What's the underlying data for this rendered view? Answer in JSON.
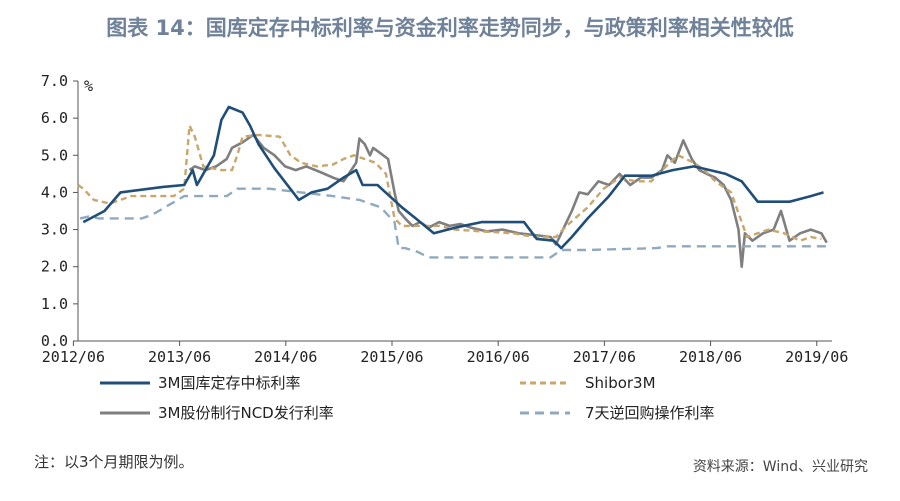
{
  "title": "图表 14：国库定存中标利率与资金利率走势同步，与政策利率相关性较低",
  "note": "注：以3个月期限为例。",
  "source": "资料来源：Wind、兴业研究",
  "colors": {
    "deposit": "#1f4e79",
    "shibor": "#c9a66b",
    "ncd": "#7f7f7f",
    "reverse_repo": "#8faabf"
  },
  "chart_data": {
    "type": "line",
    "title": "图表 14：国库定存中标利率与资金利率走势同步，与政策利率相关性较低",
    "ylabel": "%",
    "xlabel": "",
    "ylim": [
      0.0,
      7.0
    ],
    "y_ticks": [
      "0.0",
      "1.0",
      "2.0",
      "3.0",
      "4.0",
      "5.0",
      "6.0",
      "7.0"
    ],
    "x_ticks": [
      "2012/06",
      "2013/06",
      "2014/06",
      "2015/06",
      "2016/06",
      "2017/06",
      "2018/06",
      "2019/06"
    ],
    "xlim": [
      2012.5,
      2019.6
    ],
    "grid": false,
    "legend_position": "bottom",
    "series": [
      {
        "name": "3M国库定存中标利率",
        "style": "solid-thick",
        "points": [
          [
            2012.55,
            3.2
          ],
          [
            2012.75,
            3.5
          ],
          [
            2012.9,
            4.0
          ],
          [
            2013.3,
            4.15
          ],
          [
            2013.5,
            4.2
          ],
          [
            2013.58,
            4.6
          ],
          [
            2013.62,
            4.2
          ],
          [
            2013.78,
            5.0
          ],
          [
            2013.85,
            5.95
          ],
          [
            2013.92,
            6.3
          ],
          [
            2014.05,
            6.15
          ],
          [
            2014.12,
            5.8
          ],
          [
            2014.2,
            5.3
          ],
          [
            2014.35,
            4.65
          ],
          [
            2014.58,
            3.8
          ],
          [
            2014.7,
            4.0
          ],
          [
            2014.85,
            4.1
          ],
          [
            2015.0,
            4.4
          ],
          [
            2015.12,
            4.6
          ],
          [
            2015.18,
            4.2
          ],
          [
            2015.32,
            4.2
          ],
          [
            2015.55,
            3.6
          ],
          [
            2015.68,
            3.3
          ],
          [
            2015.85,
            2.9
          ],
          [
            2016.05,
            3.05
          ],
          [
            2016.3,
            3.2
          ],
          [
            2016.7,
            3.2
          ],
          [
            2016.82,
            2.75
          ],
          [
            2016.98,
            2.7
          ],
          [
            2017.05,
            2.5
          ],
          [
            2017.15,
            2.8
          ],
          [
            2017.3,
            3.3
          ],
          [
            2017.5,
            3.9
          ],
          [
            2017.65,
            4.45
          ],
          [
            2017.9,
            4.45
          ],
          [
            2018.1,
            4.6
          ],
          [
            2018.3,
            4.7
          ],
          [
            2018.45,
            4.6
          ],
          [
            2018.6,
            4.5
          ],
          [
            2018.75,
            4.3
          ],
          [
            2018.9,
            3.75
          ],
          [
            2019.0,
            3.75
          ],
          [
            2019.2,
            3.75
          ],
          [
            2019.4,
            3.9
          ],
          [
            2019.52,
            4.0
          ]
        ]
      },
      {
        "name": "Shibor3M",
        "style": "dashed",
        "points": [
          [
            2012.5,
            4.2
          ],
          [
            2012.55,
            4.1
          ],
          [
            2012.65,
            3.8
          ],
          [
            2012.8,
            3.7
          ],
          [
            2013.0,
            3.9
          ],
          [
            2013.4,
            3.9
          ],
          [
            2013.5,
            4.1
          ],
          [
            2013.55,
            5.8
          ],
          [
            2013.6,
            5.5
          ],
          [
            2013.68,
            4.7
          ],
          [
            2013.85,
            4.6
          ],
          [
            2013.95,
            4.6
          ],
          [
            2014.0,
            5.0
          ],
          [
            2014.05,
            5.5
          ],
          [
            2014.2,
            5.55
          ],
          [
            2014.4,
            5.5
          ],
          [
            2014.5,
            5.0
          ],
          [
            2014.6,
            4.8
          ],
          [
            2014.75,
            4.7
          ],
          [
            2014.9,
            4.75
          ],
          [
            2015.0,
            4.9
          ],
          [
            2015.1,
            5.0
          ],
          [
            2015.2,
            4.9
          ],
          [
            2015.3,
            4.8
          ],
          [
            2015.4,
            4.5
          ],
          [
            2015.48,
            3.3
          ],
          [
            2015.55,
            3.1
          ],
          [
            2015.7,
            3.1
          ],
          [
            2015.9,
            3.1
          ],
          [
            2016.05,
            3.0
          ],
          [
            2016.3,
            2.95
          ],
          [
            2016.6,
            2.9
          ],
          [
            2016.8,
            2.8
          ],
          [
            2017.0,
            2.8
          ],
          [
            2017.1,
            3.1
          ],
          [
            2017.3,
            3.6
          ],
          [
            2017.45,
            4.1
          ],
          [
            2017.6,
            4.4
          ],
          [
            2017.75,
            4.3
          ],
          [
            2017.9,
            4.3
          ],
          [
            2018.0,
            4.6
          ],
          [
            2018.15,
            5.0
          ],
          [
            2018.3,
            4.8
          ],
          [
            2018.4,
            4.6
          ],
          [
            2018.5,
            4.3
          ],
          [
            2018.65,
            4.0
          ],
          [
            2018.75,
            3.2
          ],
          [
            2018.8,
            2.8
          ],
          [
            2018.9,
            2.9
          ],
          [
            2019.0,
            3.0
          ],
          [
            2019.15,
            2.9
          ],
          [
            2019.3,
            2.7
          ],
          [
            2019.4,
            2.8
          ],
          [
            2019.5,
            2.75
          ]
        ]
      },
      {
        "name": "3M股份制行NCD发行利率",
        "style": "solid-jagged",
        "points": [
          [
            2013.55,
            4.6
          ],
          [
            2013.6,
            4.7
          ],
          [
            2013.7,
            4.6
          ],
          [
            2013.8,
            4.7
          ],
          [
            2013.9,
            4.9
          ],
          [
            2013.95,
            5.2
          ],
          [
            2014.05,
            5.35
          ],
          [
            2014.15,
            5.55
          ],
          [
            2014.25,
            5.2
          ],
          [
            2014.35,
            5.0
          ],
          [
            2014.45,
            4.7
          ],
          [
            2014.55,
            4.6
          ],
          [
            2014.65,
            4.7
          ],
          [
            2014.78,
            4.55
          ],
          [
            2014.9,
            4.4
          ],
          [
            2015.0,
            4.3
          ],
          [
            2015.05,
            4.5
          ],
          [
            2015.12,
            4.8
          ],
          [
            2015.15,
            5.45
          ],
          [
            2015.2,
            5.3
          ],
          [
            2015.25,
            5.0
          ],
          [
            2015.28,
            5.2
          ],
          [
            2015.35,
            5.05
          ],
          [
            2015.42,
            4.9
          ],
          [
            2015.48,
            4.0
          ],
          [
            2015.52,
            3.5
          ],
          [
            2015.58,
            3.3
          ],
          [
            2015.65,
            3.1
          ],
          [
            2015.72,
            3.2
          ],
          [
            2015.8,
            3.05
          ],
          [
            2015.9,
            3.2
          ],
          [
            2016.0,
            3.1
          ],
          [
            2016.1,
            3.15
          ],
          [
            2016.2,
            3.05
          ],
          [
            2016.35,
            2.95
          ],
          [
            2016.5,
            3.0
          ],
          [
            2016.65,
            2.9
          ],
          [
            2016.8,
            2.85
          ],
          [
            2016.95,
            2.8
          ],
          [
            2017.0,
            2.6
          ],
          [
            2017.05,
            2.9
          ],
          [
            2017.15,
            3.5
          ],
          [
            2017.22,
            4.0
          ],
          [
            2017.3,
            3.95
          ],
          [
            2017.4,
            4.3
          ],
          [
            2017.5,
            4.2
          ],
          [
            2017.6,
            4.5
          ],
          [
            2017.7,
            4.2
          ],
          [
            2017.8,
            4.4
          ],
          [
            2017.9,
            4.4
          ],
          [
            2018.0,
            4.6
          ],
          [
            2018.05,
            5.0
          ],
          [
            2018.12,
            4.8
          ],
          [
            2018.2,
            5.4
          ],
          [
            2018.28,
            4.9
          ],
          [
            2018.35,
            4.6
          ],
          [
            2018.42,
            4.5
          ],
          [
            2018.5,
            4.4
          ],
          [
            2018.58,
            4.2
          ],
          [
            2018.65,
            3.8
          ],
          [
            2018.72,
            3.0
          ],
          [
            2018.75,
            2.0
          ],
          [
            2018.78,
            2.9
          ],
          [
            2018.85,
            2.7
          ],
          [
            2018.95,
            2.9
          ],
          [
            2019.05,
            3.0
          ],
          [
            2019.12,
            3.5
          ],
          [
            2019.2,
            2.7
          ],
          [
            2019.3,
            2.9
          ],
          [
            2019.4,
            3.0
          ],
          [
            2019.5,
            2.9
          ],
          [
            2019.55,
            2.65
          ]
        ]
      },
      {
        "name": "7天逆回购操作利率",
        "style": "dashed-thick",
        "points": [
          [
            2012.52,
            3.3
          ],
          [
            2012.6,
            3.35
          ],
          [
            2012.7,
            3.3
          ],
          [
            2013.1,
            3.3
          ],
          [
            2013.2,
            3.4
          ],
          [
            2013.5,
            3.9
          ],
          [
            2013.9,
            3.9
          ],
          [
            2014.0,
            4.1
          ],
          [
            2014.3,
            4.1
          ],
          [
            2014.6,
            4.0
          ],
          [
            2014.9,
            3.9
          ],
          [
            2015.15,
            3.8
          ],
          [
            2015.35,
            3.6
          ],
          [
            2015.48,
            3.2
          ],
          [
            2015.52,
            2.5
          ],
          [
            2015.58,
            2.5
          ],
          [
            2015.7,
            2.4
          ],
          [
            2015.8,
            2.25
          ],
          [
            2016.95,
            2.25
          ],
          [
            2017.05,
            2.45
          ],
          [
            2017.25,
            2.45
          ],
          [
            2017.3,
            2.45
          ],
          [
            2017.95,
            2.5
          ],
          [
            2018.05,
            2.55
          ],
          [
            2018.25,
            2.55
          ],
          [
            2019.55,
            2.55
          ]
        ]
      }
    ]
  }
}
